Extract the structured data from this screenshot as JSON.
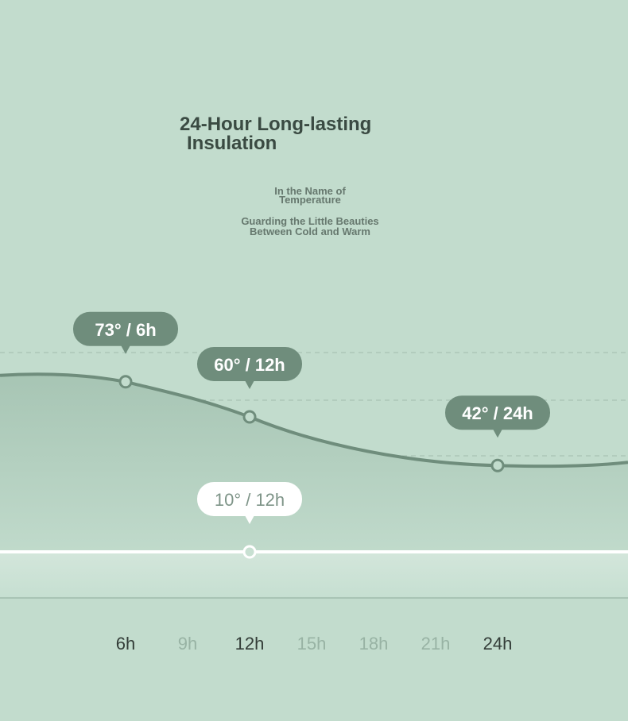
{
  "header": {
    "title_line1": "24-Hour Long-lasting",
    "title_line2": "Insulation",
    "subtitle_line1": "In the Name of",
    "subtitle_line2": "Temperature",
    "tagline_line1": "Guarding the Little Beauties",
    "tagline_line2": "Between Cold and Warm"
  },
  "colors": {
    "background": "#c2dccd",
    "curve": "#6f8d7c",
    "area_top": "#a5c3b2",
    "callout_dark": "#6f8d7c",
    "callout_light": "#ffffff",
    "baseline": "#ffffff",
    "tick_active": "#333d38",
    "tick_muted": "#98b3a4"
  },
  "chart_data": {
    "type": "area",
    "x": [
      "6h",
      "9h",
      "12h",
      "15h",
      "18h",
      "21h",
      "24h"
    ],
    "x_highlighted": [
      "6h",
      "12h",
      "24h"
    ],
    "series": [
      {
        "name": "",
        "points": [
          {
            "x": "6h",
            "y": 73,
            "label": "73° / 6h"
          },
          {
            "x": "12h",
            "y": 60,
            "label": "60° / 12h"
          },
          {
            "x": "24h",
            "y": 42,
            "label": "42° / 24h"
          }
        ]
      },
      {
        "name": "",
        "points": [
          {
            "x": "12h",
            "y": 10,
            "label": "10° / 12h"
          }
        ]
      }
    ],
    "grid": true,
    "legend": "none"
  }
}
